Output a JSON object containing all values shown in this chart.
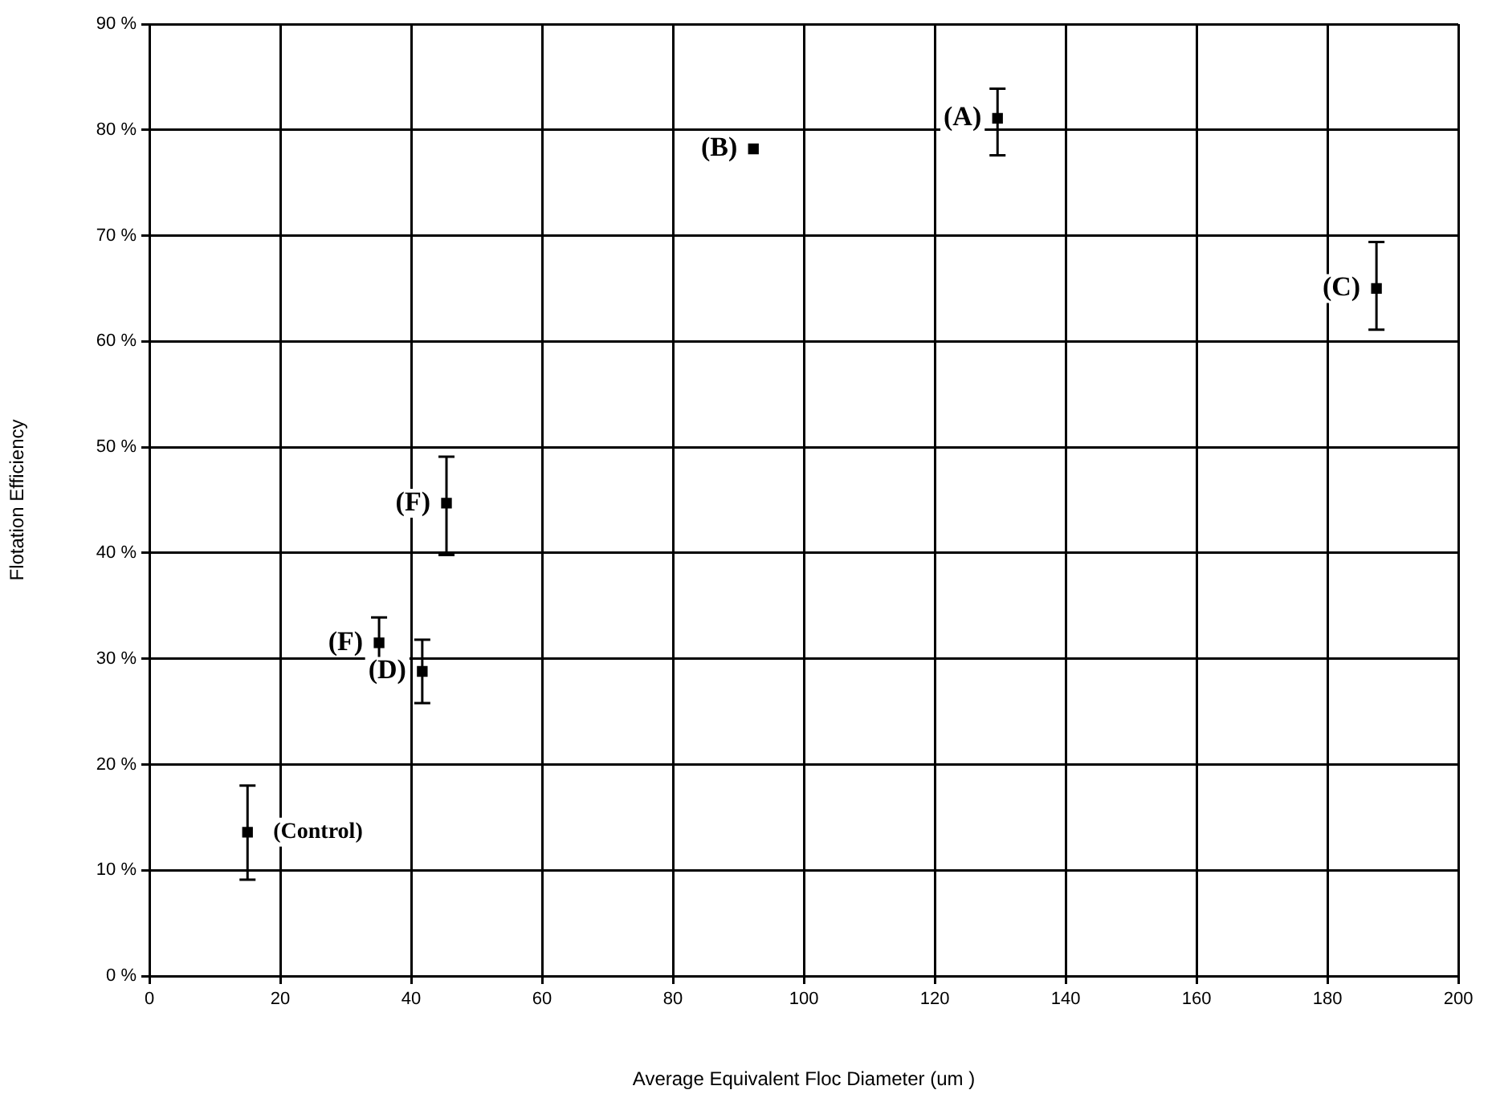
{
  "chart_data": {
    "type": "scatter",
    "xlabel": "Average Equivalent Floc Diameter (um )",
    "ylabel": "Flotation Efficiency",
    "x": [
      15.0,
      35.1,
      41.7,
      45.4,
      92.3,
      129.6,
      187.5
    ],
    "series": [
      {
        "color": "#000000",
        "values": [
          13.6,
          31.5,
          28.8,
          44.7,
          78.2,
          81.1,
          65.0
        ],
        "errors": [
          [
            9.1,
            18.0
          ],
          [
            28.5,
            33.9
          ],
          [
            25.8,
            31.8
          ],
          [
            39.8,
            49.1
          ],
          null,
          [
            77.6,
            83.9
          ],
          [
            61.1,
            69.4
          ]
        ]
      }
    ],
    "marker": "square",
    "grid": true,
    "legend": false,
    "xlim": [
      0,
      200
    ],
    "xticks": [
      0,
      20,
      40,
      60,
      80,
      100,
      120,
      140,
      160,
      180,
      200
    ],
    "ylim": [
      0,
      90
    ],
    "yticks": [
      {
        "value": 0,
        "label": "0 %"
      },
      {
        "value": 10,
        "label": "10 %"
      },
      {
        "value": 20,
        "label": "20 %"
      },
      {
        "value": 30,
        "label": "30 %"
      },
      {
        "value": 40,
        "label": "40 %"
      },
      {
        "value": 50,
        "label": "50 %"
      },
      {
        "value": 60,
        "label": "60 %"
      },
      {
        "value": 70,
        "label": "70 %"
      },
      {
        "value": 80,
        "label": "80 %"
      },
      {
        "value": 90,
        "label": "90 %"
      }
    ],
    "annotations": [
      {
        "text": "(A)",
        "x": 129.6,
        "y": 81.1
      },
      {
        "text": "(B)",
        "x": 92.3,
        "y": 78.2
      },
      {
        "text": "(C)",
        "x": 187.5,
        "y": 65.0
      },
      {
        "text": "(F)",
        "x": 45.4,
        "y": 44.7
      },
      {
        "text": "(F)",
        "x": 35.1,
        "y": 31.5
      },
      {
        "text": "(D)",
        "x": 41.7,
        "y": 28.8
      },
      {
        "text": "(Control)",
        "x": 15.0,
        "y": 13.6
      }
    ]
  }
}
